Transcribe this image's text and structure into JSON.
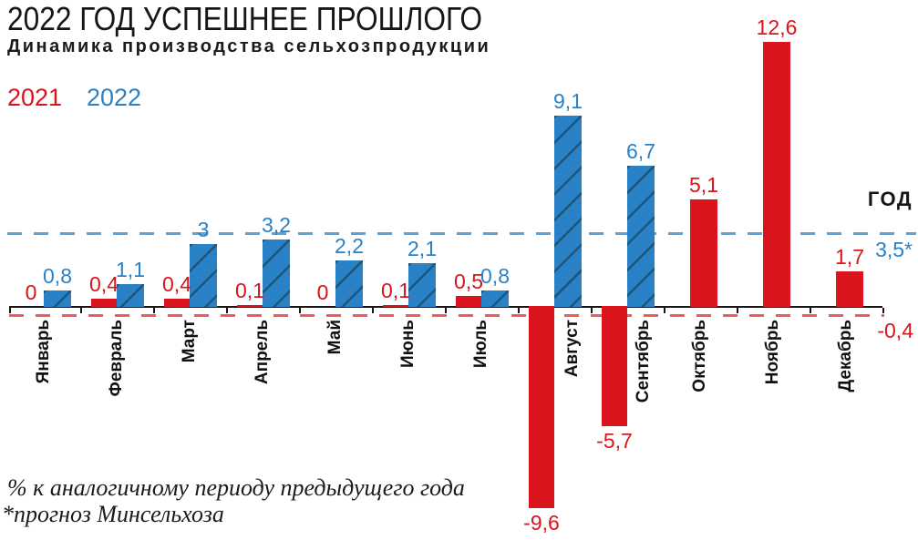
{
  "header": {
    "title": "2022 ГОД УСПЕШНЕЕ ПРОШЛОГО",
    "subtitle": "Динамика производства сельхозпродукции"
  },
  "legend": {
    "year_2021": "2021",
    "year_2022": "2022"
  },
  "colors": {
    "red": "#d9141c",
    "blue": "#2a81c5",
    "blue_hatch": "#1a577f",
    "red_dash": "#ef5a5f",
    "blue_dash": "#5aa2d8",
    "axis": "#161616"
  },
  "chart_data": {
    "type": "bar",
    "title": "2022 ГОД УСПЕШНЕЕ ПРОШЛОГО",
    "subtitle": "Динамика производства сельхозпродукции",
    "unit": "% к аналогичному периоду предыдущего года",
    "categories": [
      "Январь",
      "Февраль",
      "Март",
      "Апрель",
      "Май",
      "Июнь",
      "Июль",
      "Август",
      "Сентябрь",
      "Октябрь",
      "Ноябрь",
      "Декабрь"
    ],
    "series": [
      {
        "name": "2021",
        "color": "#d9141c",
        "values": [
          0,
          0.4,
          0.4,
          0.1,
          0,
          0.1,
          0.5,
          -9.6,
          -5.7,
          5.1,
          12.6,
          1.7
        ]
      },
      {
        "name": "2022",
        "color": "#2a81c5",
        "hatched": true,
        "values": [
          0.8,
          1.1,
          3,
          3.2,
          2.2,
          2.1,
          0.8,
          9.1,
          6.7,
          null,
          null,
          null
        ]
      }
    ],
    "ylim": [
      -10,
      13
    ],
    "grid": false,
    "legend_position": "top-left",
    "year_column_label": "ГОД",
    "reference_lines": [
      {
        "series": "2022",
        "value": 3.5,
        "label": "3,5*",
        "style": "dashed",
        "color": "#5aa2d8",
        "note": "прогноз"
      },
      {
        "series": "2021",
        "value": -0.4,
        "label": "-0,4",
        "style": "dashed",
        "color": "#ef5a5f"
      }
    ]
  },
  "annotations": {
    "year_label": "ГОД",
    "total_2022": "3,5*",
    "total_2021": "-0,4"
  },
  "footnotes": {
    "line1": "% к аналогичному периоду предыдущего года",
    "line2": "*прогноз Минсельхоза"
  }
}
